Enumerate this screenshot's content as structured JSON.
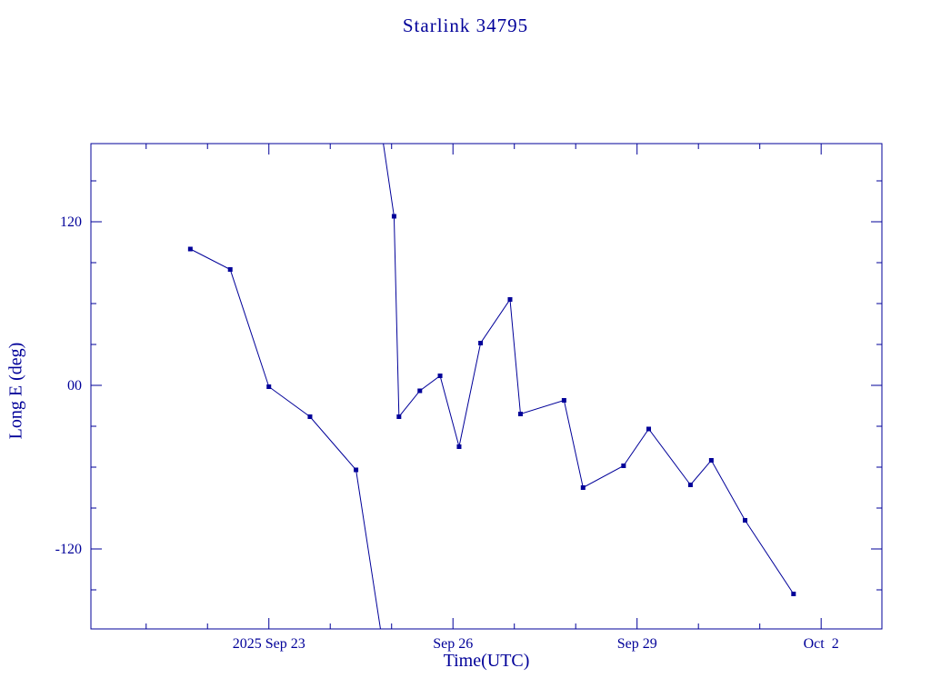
{
  "colors": {
    "ink": "#000099",
    "background": "#ffffff"
  },
  "chart_data": {
    "type": "line",
    "title": "Starlink 34795",
    "xlabel": "Time(UTC)",
    "ylabel": "Long E (deg)",
    "x_axis_unit": "date, 2025 (day number, Sep 1 = 1, Oct 2 = 32)",
    "y_axis_unit": "degrees East longitude",
    "xlim": [
      20.1,
      32.99
    ],
    "ylim": [
      -178.67,
      177.33
    ],
    "x_ticks": [
      {
        "value": 23,
        "label": "2025 Sep 23"
      },
      {
        "value": 26,
        "label": "Sep 26"
      },
      {
        "value": 29,
        "label": "Sep 29"
      },
      {
        "value": 32,
        "label": "Oct  2"
      }
    ],
    "x_minor_step": 1,
    "y_ticks": [
      {
        "value": 120,
        "label": "120"
      },
      {
        "value": 0,
        "label": "00"
      },
      {
        "value": -120,
        "label": "-120"
      }
    ],
    "y_minor_step": 30,
    "grid": false,
    "legend": false,
    "series": [
      {
        "name": "longitude-east",
        "color": "#000099",
        "marker": "square",
        "points": [
          [
            21.72,
            100
          ],
          [
            22.37,
            85
          ],
          [
            23.0,
            -1
          ],
          [
            23.67,
            -23
          ],
          [
            24.42,
            -62
          ],
          [
            25.04,
            124
          ],
          [
            25.12,
            -23
          ],
          [
            25.46,
            -4
          ],
          [
            25.79,
            7
          ],
          [
            26.1,
            -45
          ],
          [
            26.45,
            31
          ],
          [
            26.93,
            63
          ],
          [
            27.1,
            -21
          ],
          [
            27.81,
            -11
          ],
          [
            28.12,
            -75
          ],
          [
            28.78,
            -59
          ],
          [
            29.19,
            -32
          ],
          [
            29.87,
            -73
          ],
          [
            30.21,
            -55
          ],
          [
            30.76,
            -99
          ],
          [
            31.55,
            -153
          ]
        ],
        "line_segments": [
          [
            [
              21.72,
              100
            ],
            [
              22.37,
              85
            ],
            [
              23.0,
              -1
            ],
            [
              23.67,
              -23
            ],
            [
              24.42,
              -62
            ],
            [
              24.84,
              -185
            ]
          ],
          [
            [
              24.84,
              185
            ],
            [
              25.04,
              124
            ],
            [
              25.12,
              -23
            ],
            [
              25.46,
              -4
            ],
            [
              25.79,
              7
            ],
            [
              26.1,
              -45
            ],
            [
              26.45,
              31
            ],
            [
              26.93,
              63
            ],
            [
              27.1,
              -21
            ],
            [
              27.81,
              -11
            ],
            [
              28.12,
              -75
            ],
            [
              28.78,
              -59
            ],
            [
              29.19,
              -32
            ],
            [
              29.87,
              -73
            ],
            [
              30.21,
              -55
            ],
            [
              30.76,
              -99
            ],
            [
              31.55,
              -153
            ]
          ]
        ]
      }
    ]
  }
}
